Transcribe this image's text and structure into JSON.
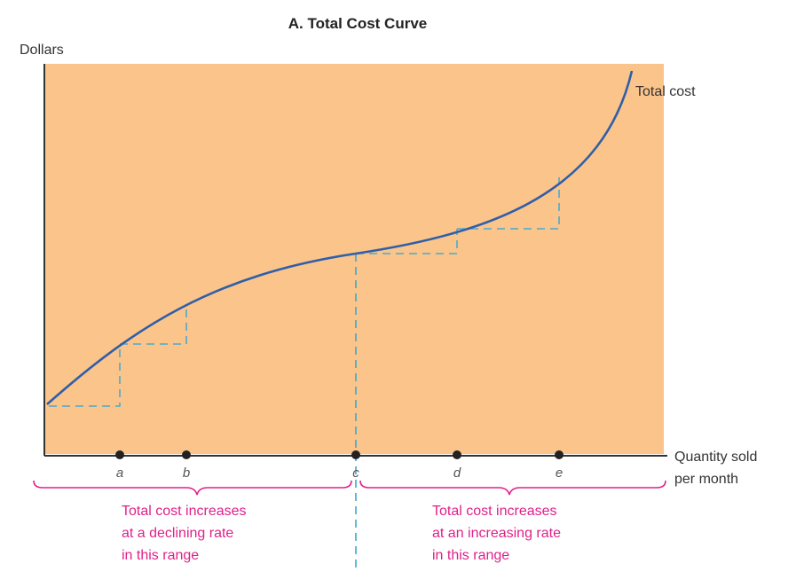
{
  "title": "A. Total Cost Curve",
  "y_axis_label": "Dollars",
  "x_axis_label_lines": [
    "Quantity sold",
    "per month"
  ],
  "curve_label": "Total cost",
  "points": [
    {
      "id": "a",
      "label": "a"
    },
    {
      "id": "b",
      "label": "b"
    },
    {
      "id": "c",
      "label": "c"
    },
    {
      "id": "d",
      "label": "d"
    },
    {
      "id": "e",
      "label": "e"
    }
  ],
  "left_range_note": [
    "Total cost increases",
    "at a declining rate",
    "in this range"
  ],
  "right_range_note": [
    "Total cost increases",
    "at an increasing rate",
    "in this range"
  ],
  "colors": {
    "plot_background": "#fbc48a",
    "curve": "#2f5fa8",
    "guide_dashes": "#4aaad0",
    "vertical_guide": "#3aa9cf",
    "brace": "#e0218a",
    "note_text": "#e0218a",
    "markers": "#222222"
  }
}
